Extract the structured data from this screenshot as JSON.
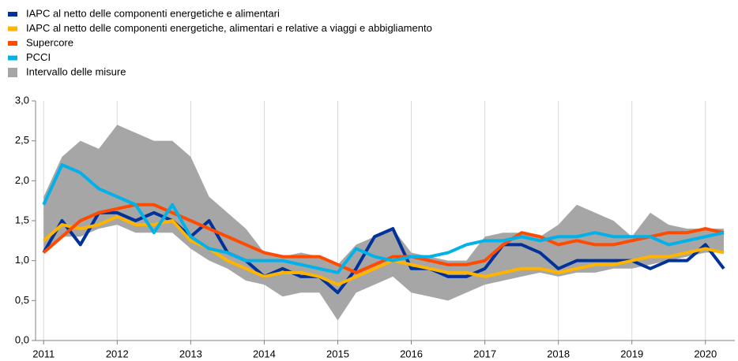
{
  "chart_data": {
    "type": "line",
    "xlim": [
      2010.89,
      2020.4
    ],
    "xticks": [
      2011,
      2012,
      2013,
      2014,
      2015,
      2016,
      2017,
      2018,
      2019,
      2020
    ],
    "ylim": [
      0,
      3
    ],
    "yticks": [
      {
        "value": 0,
        "label": "0,0"
      },
      {
        "value": 0.5,
        "label": "0,5"
      },
      {
        "value": 1,
        "label": "1,0"
      },
      {
        "value": 1.5,
        "label": "1,5"
      },
      {
        "value": 2,
        "label": "2,0"
      },
      {
        "value": 2.5,
        "label": "2,5"
      },
      {
        "value": 3,
        "label": "3,0"
      }
    ],
    "xgrid": true,
    "legend": "top-left",
    "x": [
      2011,
      2011.25,
      2011.5,
      2011.75,
      2012,
      2012.25,
      2012.5,
      2012.75,
      2013,
      2013.25,
      2013.5,
      2013.75,
      2014,
      2014.25,
      2014.5,
      2014.75,
      2015,
      2015.25,
      2015.5,
      2015.75,
      2016,
      2016.25,
      2016.5,
      2016.75,
      2017,
      2017.25,
      2017.5,
      2017.75,
      2018,
      2018.25,
      2018.5,
      2018.75,
      2019,
      2019.25,
      2019.5,
      2019.75,
      2020,
      2020.25
    ],
    "series": [
      {
        "name": "IAPC al netto delle componenti  energetiche  e alimentari",
        "color": "#003299",
        "values": [
          1.1,
          1.5,
          1.2,
          1.6,
          1.6,
          1.5,
          1.6,
          1.5,
          1.3,
          1.5,
          1.1,
          1.0,
          0.8,
          0.9,
          0.8,
          0.8,
          0.6,
          0.9,
          1.3,
          1.4,
          0.9,
          0.9,
          0.8,
          0.8,
          0.9,
          1.2,
          1.2,
          1.1,
          0.9,
          1.0,
          1.0,
          1.0,
          1.0,
          0.9,
          1.0,
          1.0,
          1.2,
          0.9
        ]
      },
      {
        "name": "IAPC al netto delle componenti  energetiche,  alimentari e relative a viaggi  e abbigliamento",
        "color": "#ffb400",
        "values": [
          1.25,
          1.45,
          1.4,
          1.45,
          1.55,
          1.45,
          1.45,
          1.5,
          1.25,
          1.15,
          1.0,
          0.9,
          0.8,
          0.85,
          0.85,
          0.8,
          0.7,
          0.8,
          0.9,
          1.0,
          0.95,
          0.9,
          0.85,
          0.85,
          0.8,
          0.85,
          0.9,
          0.9,
          0.85,
          0.9,
          0.95,
          0.95,
          1.0,
          1.05,
          1.05,
          1.1,
          1.15,
          1.1
        ]
      },
      {
        "name": "Supercore",
        "color": "#ff4b00",
        "values": [
          1.1,
          1.3,
          1.5,
          1.6,
          1.65,
          1.7,
          1.7,
          1.6,
          1.5,
          1.4,
          1.3,
          1.2,
          1.1,
          1.05,
          1.05,
          1.05,
          0.95,
          0.85,
          0.95,
          1.05,
          1.05,
          1.0,
          0.95,
          0.95,
          1.0,
          1.2,
          1.35,
          1.3,
          1.2,
          1.25,
          1.2,
          1.2,
          1.25,
          1.3,
          1.35,
          1.35,
          1.4,
          1.35
        ]
      },
      {
        "name": "PCCI",
        "color": "#00b1ea",
        "values": [
          1.7,
          2.2,
          2.1,
          1.9,
          1.8,
          1.7,
          1.35,
          1.7,
          1.3,
          1.15,
          1.1,
          1.0,
          1.0,
          1.0,
          0.95,
          0.9,
          0.85,
          1.15,
          1.05,
          1.0,
          1.05,
          1.05,
          1.1,
          1.2,
          1.25,
          1.25,
          1.3,
          1.25,
          1.3,
          1.3,
          1.35,
          1.3,
          1.3,
          1.3,
          1.2,
          1.25,
          1.3,
          1.35
        ]
      }
    ],
    "band": {
      "name": "Intervallo delle misure",
      "color": "#a6a6a6",
      "upper": [
        1.8,
        2.3,
        2.5,
        2.4,
        2.7,
        2.6,
        2.5,
        2.5,
        2.3,
        1.8,
        1.6,
        1.4,
        1.1,
        1.05,
        1.1,
        1.05,
        0.95,
        1.2,
        1.3,
        1.4,
        1.1,
        1.05,
        1.0,
        1.0,
        1.3,
        1.35,
        1.35,
        1.3,
        1.45,
        1.7,
        1.6,
        1.5,
        1.3,
        1.6,
        1.45,
        1.4,
        1.4,
        1.4
      ],
      "lower": [
        1.1,
        1.3,
        1.3,
        1.4,
        1.45,
        1.35,
        1.35,
        1.35,
        1.15,
        1.0,
        0.9,
        0.75,
        0.7,
        0.55,
        0.6,
        0.6,
        0.25,
        0.6,
        0.7,
        0.8,
        0.6,
        0.55,
        0.5,
        0.6,
        0.7,
        0.75,
        0.8,
        0.85,
        0.8,
        0.85,
        0.85,
        0.9,
        0.9,
        0.95,
        1.0,
        1.05,
        1.1,
        1.1
      ]
    }
  }
}
